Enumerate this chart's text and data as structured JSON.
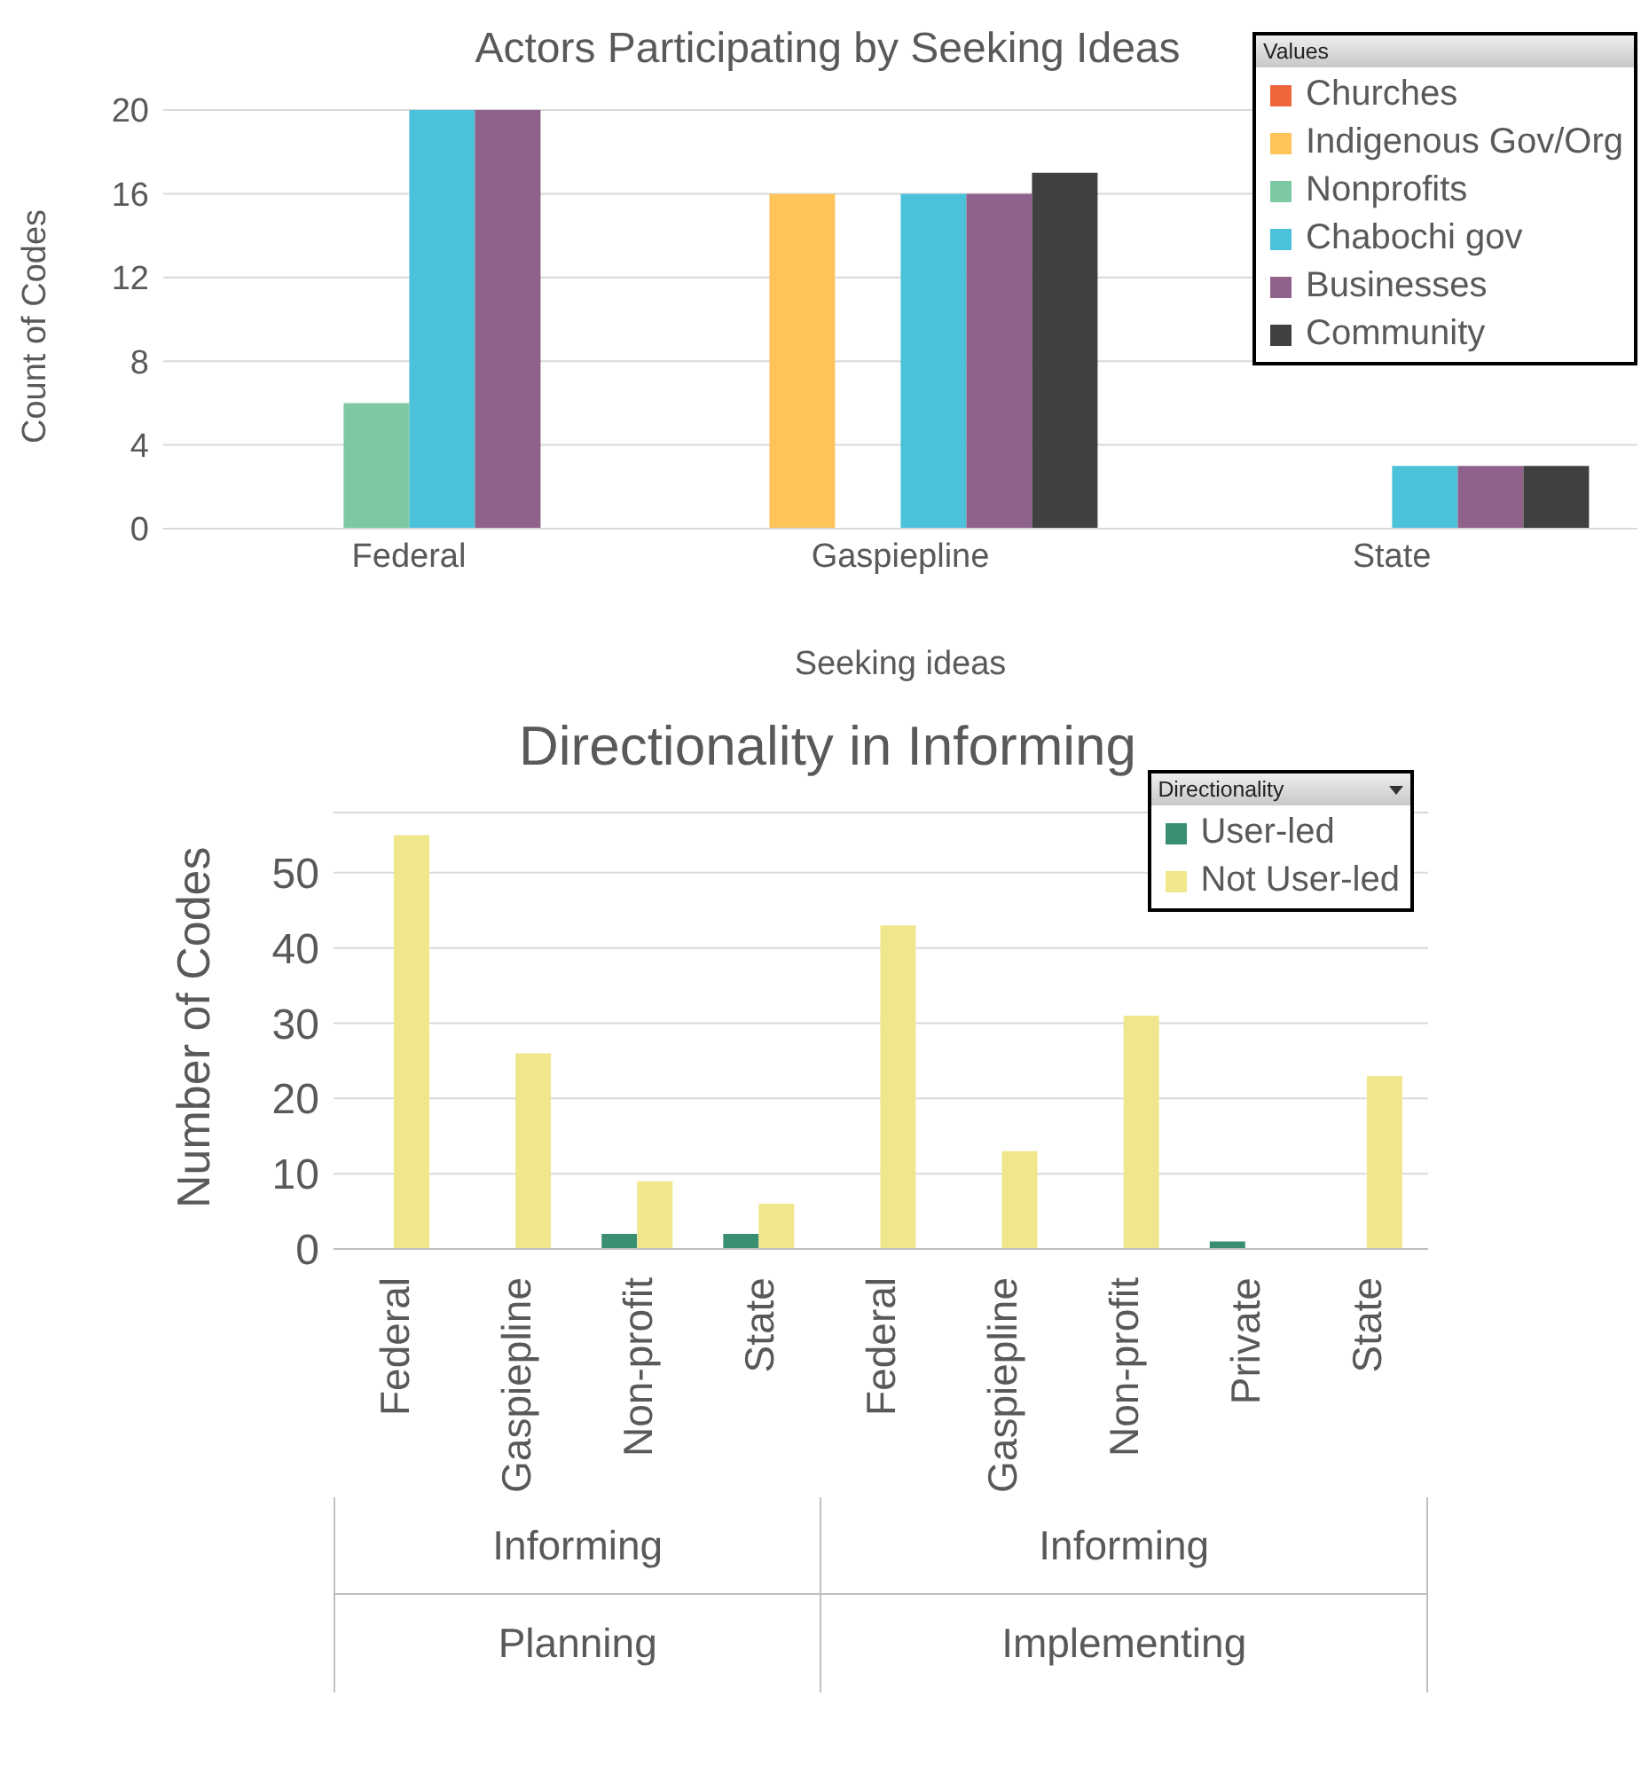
{
  "chart_data": [
    {
      "type": "bar",
      "title": "Actors Participating by Seeking Ideas",
      "xlabel": "Seeking ideas",
      "ylabel": "Count of Codes",
      "legend_title": "Values",
      "categories": [
        "Federal",
        "Gaspiepline",
        "State"
      ],
      "series": [
        {
          "name": "Churches",
          "color": "#f0643c",
          "values": [
            null,
            null,
            null
          ]
        },
        {
          "name": "Indigenous Gov/Org",
          "color": "#fec45a",
          "values": [
            null,
            16,
            null
          ]
        },
        {
          "name": "Nonprofits",
          "color": "#7dc9a1",
          "values": [
            6,
            null,
            null
          ]
        },
        {
          "name": "Chabochi gov",
          "color": "#4bc2d9",
          "values": [
            20,
            16,
            3
          ]
        },
        {
          "name": "Businesses",
          "color": "#8f628b",
          "values": [
            20,
            16,
            3
          ]
        },
        {
          "name": "Community",
          "color": "#404040",
          "values": [
            null,
            17,
            3
          ]
        }
      ],
      "ylim": [
        0,
        20
      ],
      "yticks": [
        0,
        4,
        8,
        12,
        16,
        20
      ],
      "grid": "y",
      "legend": "top right"
    },
    {
      "type": "bar",
      "title": "Directionality in Informing",
      "ylabel": "Number of Codes",
      "legend_title": "Directionality",
      "categories": [
        "Federal",
        "Gaspiepline",
        "Non-profit",
        "State",
        "Federal",
        "Gaspiepline",
        "Non-profit",
        "Private",
        "State"
      ],
      "series": [
        {
          "name": "User-led",
          "color": "#3a8f70",
          "values": [
            null,
            null,
            2,
            2,
            null,
            null,
            null,
            1,
            null
          ]
        },
        {
          "name": "Not User-led",
          "color": "#f0e68c",
          "values": [
            55,
            26,
            9,
            6,
            43,
            13,
            31,
            null,
            23
          ]
        }
      ],
      "annotations": [
        "Informing",
        "Planning",
        "Informing",
        "Implementing"
      ],
      "ylim": [
        0,
        58
      ],
      "yticks": [
        0,
        10,
        20,
        30,
        40,
        50
      ],
      "grid": "y",
      "legend": "top right"
    }
  ]
}
